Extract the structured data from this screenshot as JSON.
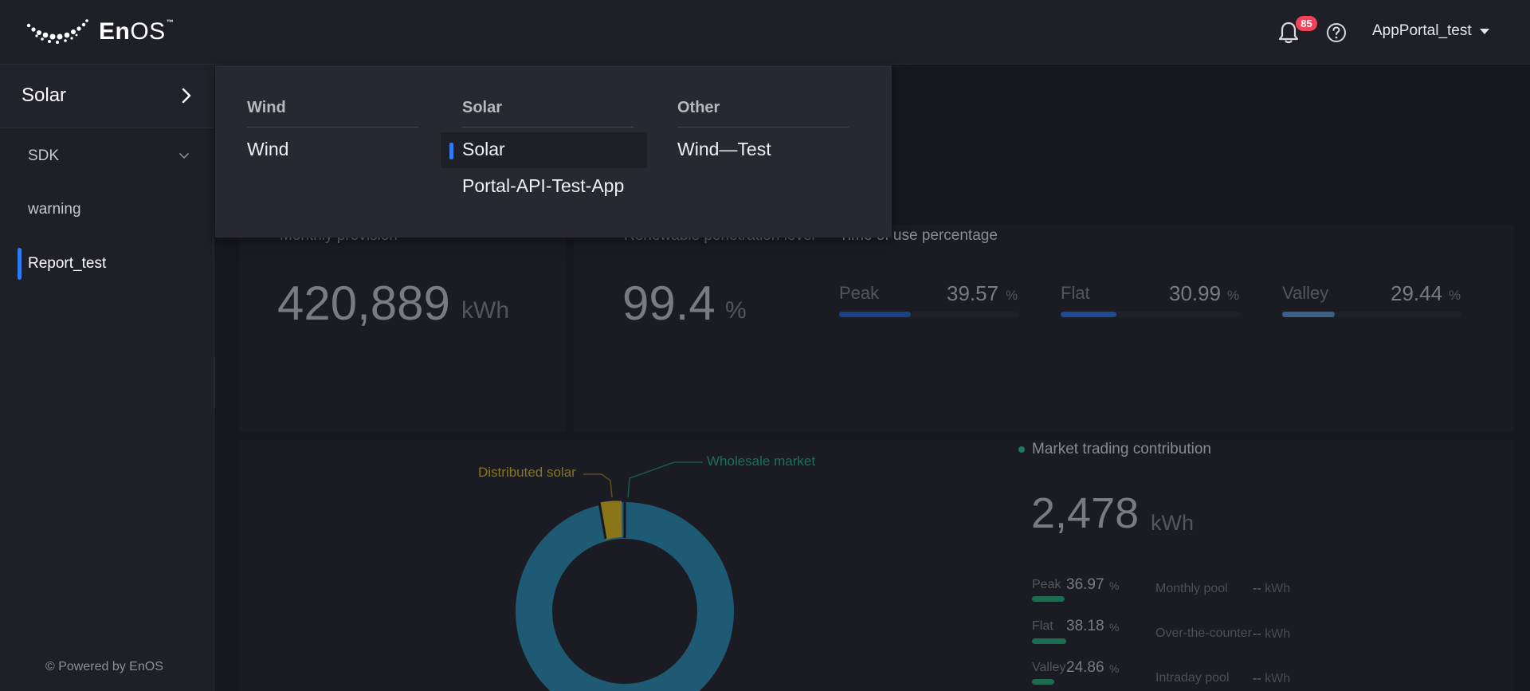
{
  "header": {
    "brand": "EnOS",
    "brand_prefix": "En",
    "brand_suffix": "OS",
    "trademark": "™",
    "notification_count": "85",
    "user_name": "AppPortal_test"
  },
  "sidebar": {
    "app_title": "Solar",
    "items": [
      {
        "label": "SDK",
        "expandable": true
      },
      {
        "label": "warning"
      },
      {
        "label": "Report_test",
        "active": true
      }
    ],
    "footer": "© Powered by EnOS"
  },
  "app_switcher": {
    "columns": [
      {
        "heading": "Wind",
        "items": [
          "Wind"
        ]
      },
      {
        "heading": "Solar",
        "items": [
          "Solar",
          "Portal-API-Test-App"
        ],
        "selected": "Solar"
      },
      {
        "heading": "Other",
        "items": [
          "Wind—Test"
        ]
      }
    ]
  },
  "dashboard": {
    "monthly_provision": {
      "label": "Monthly provision",
      "value": "420,889",
      "unit": "kWh"
    },
    "renewable_penetration": {
      "label": "Renewable penetration level",
      "value": "99.4",
      "unit": "%"
    },
    "time_of_use": {
      "label": "Time of use percentage",
      "items": [
        {
          "name": "Peak",
          "value": "39.57",
          "unit": "%",
          "color": "#1b3f86",
          "share": 0.4
        },
        {
          "name": "Flat",
          "value": "30.99",
          "unit": "%",
          "color": "#1d4a94",
          "share": 0.31
        },
        {
          "name": "Valley",
          "value": "29.44",
          "unit": "%",
          "color": "#3a5f8a",
          "share": 0.29
        }
      ]
    },
    "donut": {
      "slices": [
        {
          "name": "Distributed solar",
          "color": "#8a7518"
        },
        {
          "name": "Wholesale market",
          "color": "#1e5a74"
        }
      ]
    },
    "market_trading": {
      "label": "Market trading contribution",
      "value": "2,478",
      "unit": "kWh",
      "breakdown": [
        {
          "name": "Peak",
          "value": "36.97",
          "unit": "%",
          "share": 0.37
        },
        {
          "name": "Flat",
          "value": "38.18",
          "unit": "%",
          "share": 0.38
        },
        {
          "name": "Valley",
          "value": "24.86",
          "unit": "%",
          "share": 0.25
        }
      ],
      "pools": [
        {
          "name": "Monthly pool",
          "value": "--",
          "unit": "kWh"
        },
        {
          "name": "Over-the-counter",
          "value": "--",
          "unit": "kWh"
        },
        {
          "name": "Intraday pool",
          "value": "--",
          "unit": "kWh"
        }
      ]
    }
  }
}
